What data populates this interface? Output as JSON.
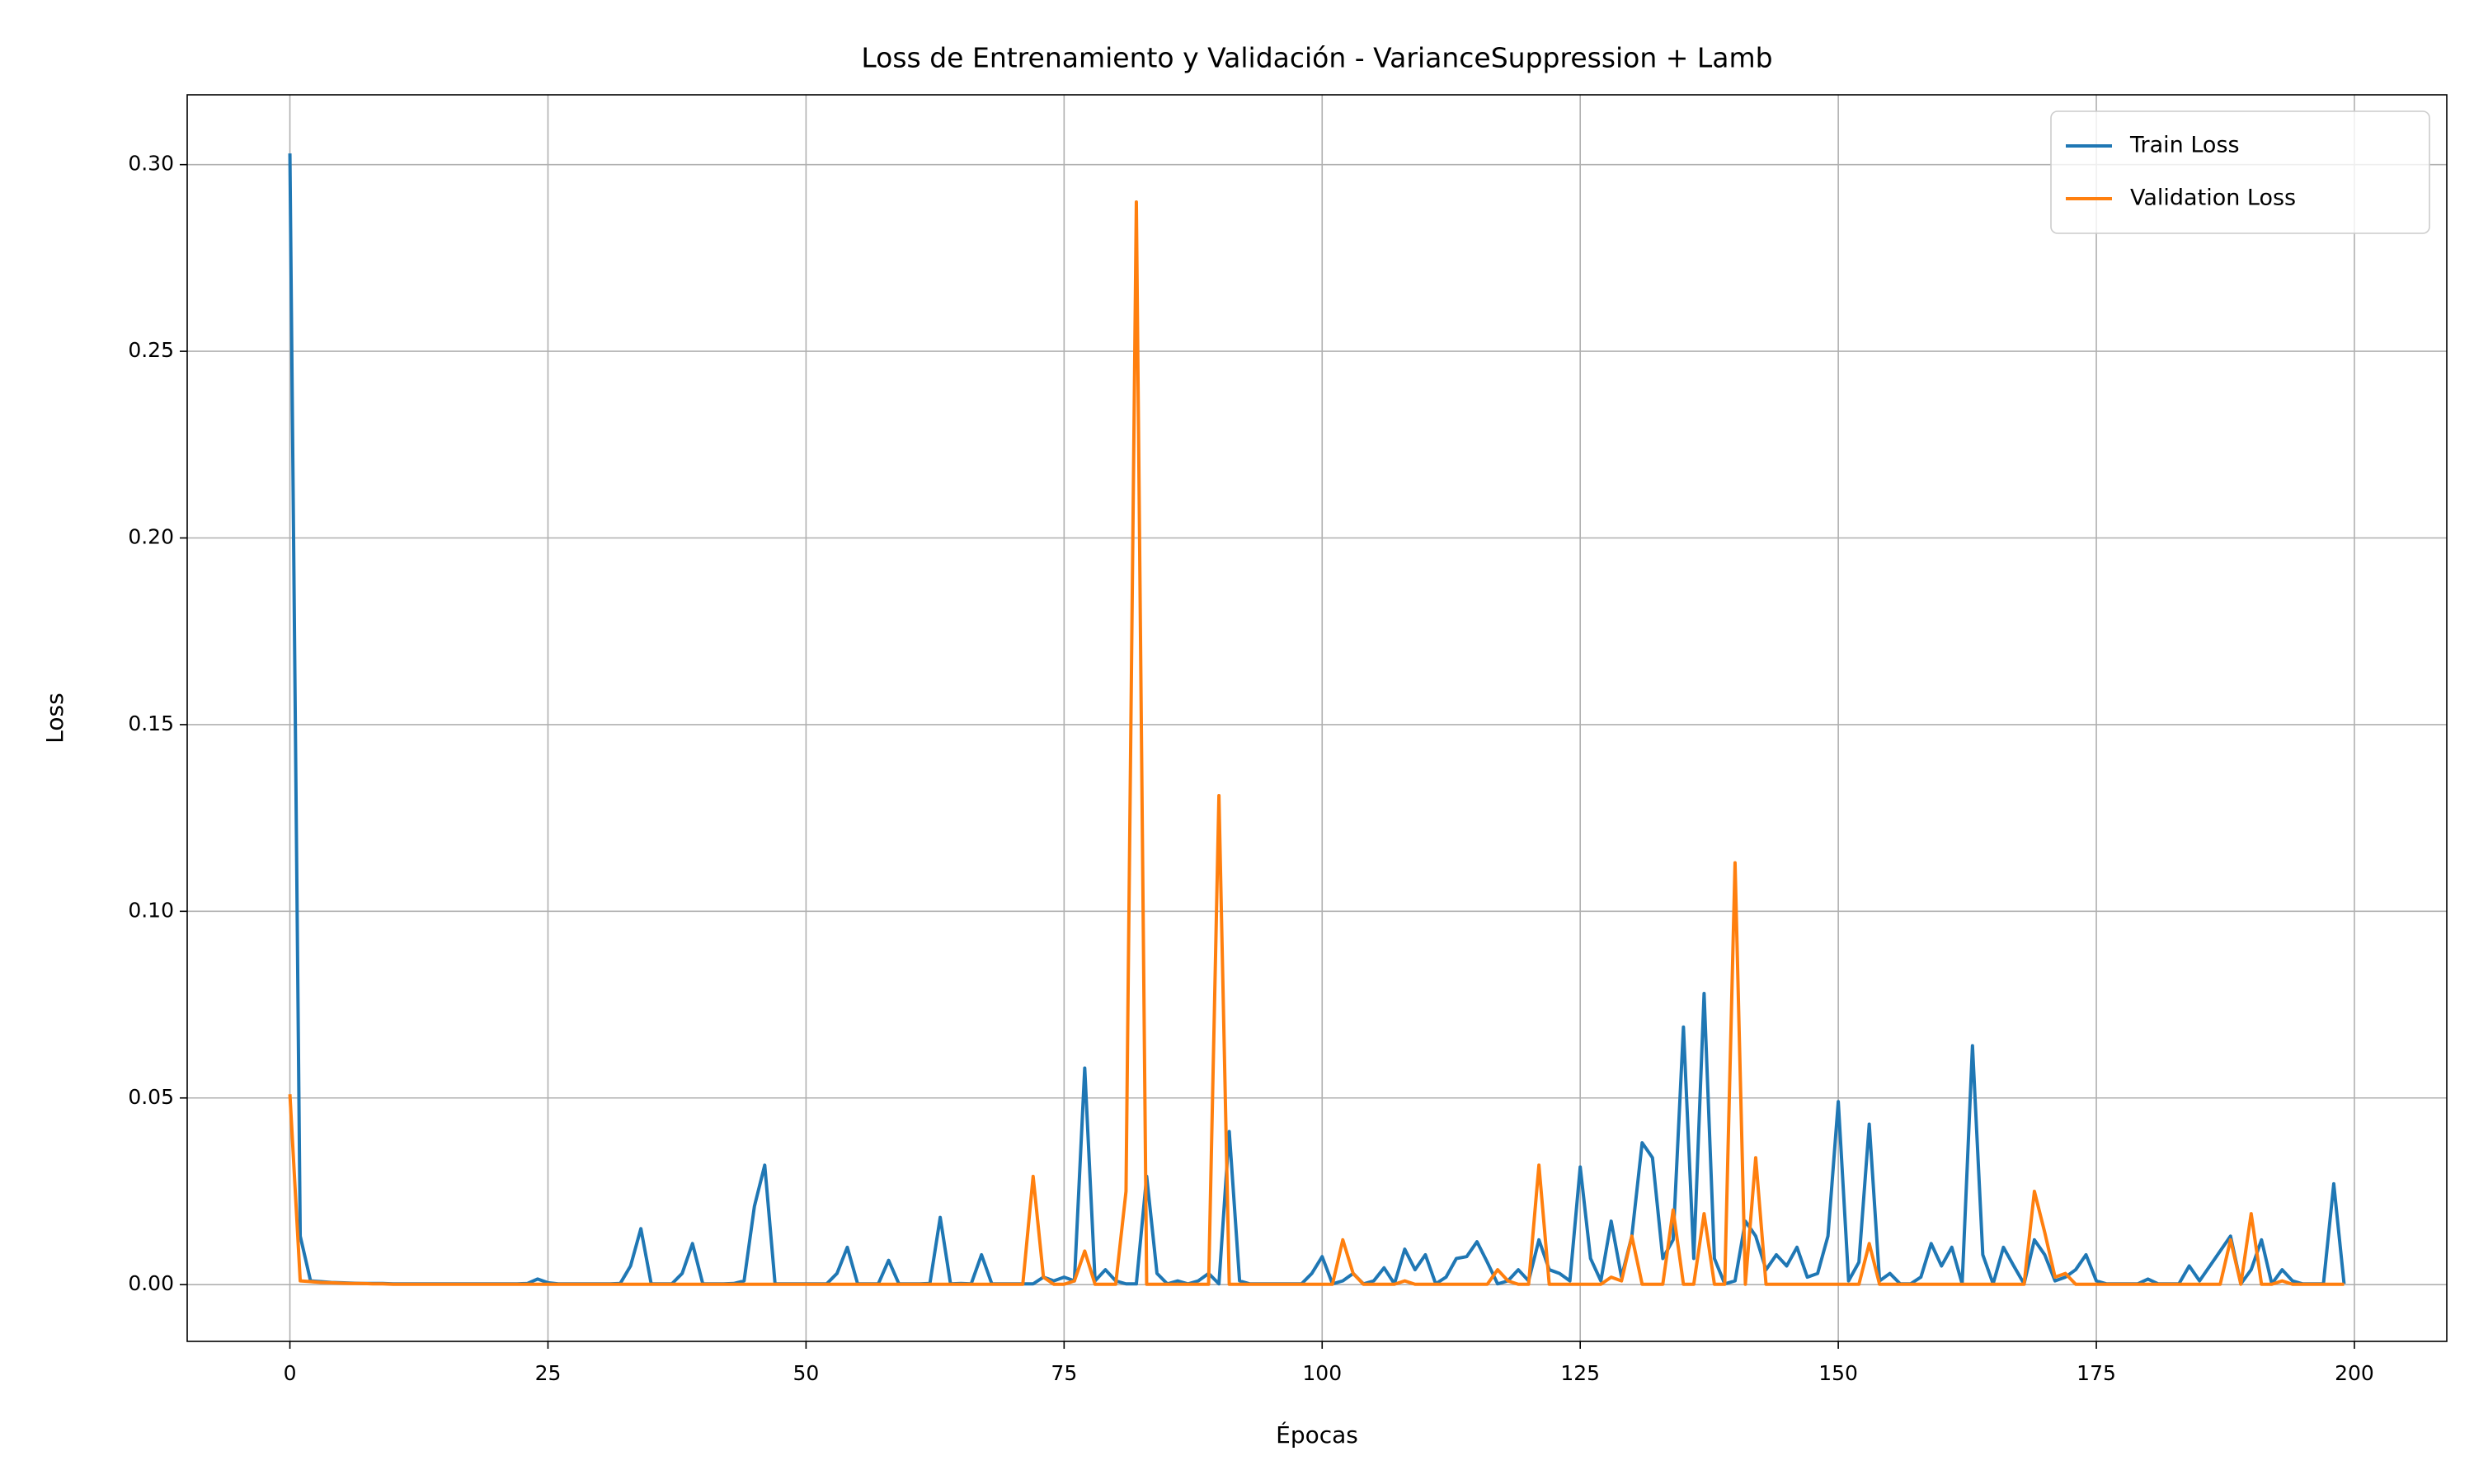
{
  "chart_data": {
    "type": "line",
    "title": "Loss de Entrenamiento y Validación - VarianceSuppression + Lamb",
    "x_label": "Épocas",
    "y_label": "Loss",
    "x": [
      0,
      1,
      2,
      3,
      4,
      5,
      6,
      7,
      8,
      9,
      10,
      11,
      12,
      13,
      14,
      15,
      16,
      17,
      18,
      19,
      20,
      21,
      22,
      23,
      24,
      25,
      26,
      27,
      28,
      29,
      30,
      31,
      32,
      33,
      34,
      35,
      36,
      37,
      38,
      39,
      40,
      41,
      42,
      43,
      44,
      45,
      46,
      47,
      48,
      49,
      50,
      51,
      52,
      53,
      54,
      55,
      56,
      57,
      58,
      59,
      60,
      61,
      62,
      63,
      64,
      65,
      66,
      67,
      68,
      69,
      70,
      71,
      72,
      73,
      74,
      75,
      76,
      77,
      78,
      79,
      80,
      81,
      82,
      83,
      84,
      85,
      86,
      87,
      88,
      89,
      90,
      91,
      92,
      93,
      94,
      95,
      96,
      97,
      98,
      99,
      100,
      101,
      102,
      103,
      104,
      105,
      106,
      107,
      108,
      109,
      110,
      111,
      112,
      113,
      114,
      115,
      116,
      117,
      118,
      119,
      120,
      121,
      122,
      123,
      124,
      125,
      126,
      127,
      128,
      129,
      130,
      131,
      132,
      133,
      134,
      135,
      136,
      137,
      138,
      139,
      140,
      141,
      142,
      143,
      144,
      145,
      146,
      147,
      148,
      149,
      150,
      151,
      152,
      153,
      154,
      155,
      156,
      157,
      158,
      159,
      160,
      161,
      162,
      163,
      164,
      165,
      166,
      167,
      168,
      169,
      170,
      171,
      172,
      173,
      174,
      175,
      176,
      177,
      178,
      179,
      180,
      181,
      182,
      183,
      184,
      185,
      186,
      187,
      188,
      189,
      190,
      191,
      192,
      193,
      194,
      195,
      196,
      197,
      198,
      199
    ],
    "series": [
      {
        "name": "Train Loss",
        "color": "#1f77b4",
        "values": [
          0.303,
          0.013,
          0.001,
          0.0008,
          0.0006,
          0.0005,
          0.0004,
          0.0003,
          0.0003,
          0.0003,
          0.0002,
          0.0002,
          0.0002,
          0.0002,
          0.0002,
          0.0002,
          0.0002,
          0.0002,
          0.0002,
          0.0002,
          0.0002,
          0.0002,
          0.0002,
          0.0003,
          0.0015,
          0.0005,
          0.0002,
          0.0002,
          0.0002,
          0.0002,
          0.0002,
          0.0002,
          0.0003,
          0.005,
          0.015,
          0.0002,
          0.0002,
          0.0002,
          0.003,
          0.011,
          0.0002,
          0.0002,
          0.0002,
          0.0003,
          0.001,
          0.021,
          0.032,
          0.0002,
          0.0002,
          0.0002,
          0.0002,
          0.0002,
          0.0002,
          0.003,
          0.01,
          0.0002,
          0.0002,
          0.0002,
          0.0065,
          0.0002,
          0.0002,
          0.0002,
          0.0003,
          0.018,
          0.0002,
          0.0003,
          0.0002,
          0.008,
          0.0002,
          0.0002,
          0.0002,
          0.0002,
          0.0002,
          0.002,
          0.001,
          0.002,
          0.001,
          0.058,
          0.001,
          0.004,
          0.001,
          0.0002,
          0.0002,
          0.029,
          0.003,
          0.0002,
          0.001,
          0.0002,
          0.001,
          0.003,
          0.0002,
          0.041,
          0.001,
          0.0002,
          0.0002,
          0.0002,
          0.0002,
          0.0002,
          0.0002,
          0.003,
          0.0075,
          0.0002,
          0.001,
          0.003,
          0.0002,
          0.001,
          0.0045,
          0.0002,
          0.0095,
          0.004,
          0.008,
          0.0002,
          0.002,
          0.007,
          0.0075,
          0.0115,
          0.006,
          0.0002,
          0.001,
          0.004,
          0.001,
          0.012,
          0.004,
          0.003,
          0.001,
          0.0315,
          0.007,
          0.001,
          0.017,
          0.002,
          0.013,
          0.038,
          0.034,
          0.007,
          0.012,
          0.069,
          0.007,
          0.078,
          0.007,
          0.0002,
          0.001,
          0.017,
          0.013,
          0.004,
          0.008,
          0.005,
          0.01,
          0.002,
          0.003,
          0.013,
          0.049,
          0.001,
          0.006,
          0.043,
          0.001,
          0.003,
          0.0002,
          0.0002,
          0.002,
          0.011,
          0.005,
          0.01,
          0.0002,
          0.064,
          0.008,
          0.0002,
          0.01,
          0.005,
          0.0002,
          0.012,
          0.008,
          0.001,
          0.002,
          0.004,
          0.008,
          0.001,
          0.0002,
          0.0002,
          0.0002,
          0.0002,
          0.0015,
          0.0002,
          0.0002,
          0.0002,
          0.005,
          0.001,
          0.005,
          0.009,
          0.013,
          0.0002,
          0.004,
          0.012,
          0.0002,
          0.004,
          0.001,
          0.0002,
          0.0002,
          0.0002,
          0.027,
          0.0002
        ]
      },
      {
        "name": "Validation Loss",
        "color": "#ff7f0e",
        "values": [
          0.051,
          0.001,
          0.0008,
          0.0006,
          0.0005,
          0.0004,
          0.0003,
          0.0003,
          0.0002,
          0.0002,
          0.0001,
          0.0001,
          0.0001,
          0.0001,
          0.0001,
          0.0001,
          0.0001,
          0.0001,
          0.0001,
          0.0001,
          0.0001,
          0.0001,
          0.0001,
          0.0001,
          0.0001,
          0.0001,
          0.0001,
          0.0001,
          0.0001,
          0.0001,
          0.0001,
          0.0001,
          0.0001,
          0.0001,
          0.0001,
          0.0001,
          0.0001,
          0.0001,
          0.0001,
          0.0001,
          0.0001,
          0.0001,
          0.0001,
          0.0001,
          0.0001,
          0.0001,
          0.0001,
          0.0001,
          0.0001,
          0.0001,
          0.0001,
          0.0001,
          0.0001,
          0.0001,
          0.0001,
          0.0001,
          0.0001,
          0.0001,
          0.0001,
          0.0001,
          0.0001,
          0.0001,
          0.0001,
          0.0001,
          0.0001,
          0.0001,
          0.0001,
          0.0001,
          0.0001,
          0.0001,
          0.0001,
          0.0001,
          0.029,
          0.002,
          0.0001,
          0.0001,
          0.001,
          0.009,
          0.0001,
          0.0001,
          0.0001,
          0.025,
          0.29,
          0.0001,
          0.0001,
          0.0001,
          0.0001,
          0.0001,
          0.0001,
          0.0001,
          0.131,
          0.0001,
          0.0001,
          0.0001,
          0.0001,
          0.0001,
          0.0001,
          0.0001,
          0.0001,
          0.0001,
          0.0001,
          0.0001,
          0.012,
          0.003,
          0.0001,
          0.0001,
          0.0001,
          0.0001,
          0.001,
          0.0001,
          0.0001,
          0.0001,
          0.0001,
          0.0001,
          0.0001,
          0.0001,
          0.0001,
          0.004,
          0.001,
          0.0001,
          0.0001,
          0.032,
          0.0001,
          0.0001,
          0.0001,
          0.0001,
          0.0001,
          0.0001,
          0.002,
          0.001,
          0.013,
          0.0001,
          0.0001,
          0.0001,
          0.02,
          0.0001,
          0.0001,
          0.019,
          0.0001,
          0.0001,
          0.113,
          0.0001,
          0.034,
          0.0001,
          0.0001,
          0.0001,
          0.0001,
          0.0001,
          0.0001,
          0.0001,
          0.0001,
          0.0001,
          0.0001,
          0.011,
          0.0001,
          0.0001,
          0.0001,
          0.0001,
          0.0001,
          0.0001,
          0.0001,
          0.0001,
          0.0001,
          0.0001,
          0.0001,
          0.0001,
          0.0001,
          0.0001,
          0.0001,
          0.025,
          0.014,
          0.002,
          0.003,
          0.0001,
          0.0001,
          0.0001,
          0.0001,
          0.0001,
          0.0001,
          0.0001,
          0.0001,
          0.0001,
          0.0001,
          0.0001,
          0.0001,
          0.0001,
          0.0001,
          0.0001,
          0.012,
          0.0001,
          0.019,
          0.0001,
          0.0001,
          0.001,
          0.0001,
          0.0001,
          0.0001,
          0.0001,
          0.0001,
          0.0001
        ]
      }
    ],
    "xlim": [
      -9.95,
      208.95
    ],
    "ylim": [
      -0.0152,
      0.3187
    ],
    "xticks": [
      0,
      25,
      50,
      75,
      100,
      125,
      150,
      175,
      200
    ],
    "yticks": [
      {
        "value": 0,
        "label": "0.00"
      },
      {
        "value": 0.05,
        "label": "0.05"
      },
      {
        "value": 0.1,
        "label": "0.10"
      },
      {
        "value": 0.15,
        "label": "0.15"
      },
      {
        "value": 0.2,
        "label": "0.20"
      },
      {
        "value": 0.25,
        "label": "0.25"
      },
      {
        "value": 0.3,
        "label": "0.30"
      }
    ],
    "grid": true,
    "legend": "upper right"
  }
}
